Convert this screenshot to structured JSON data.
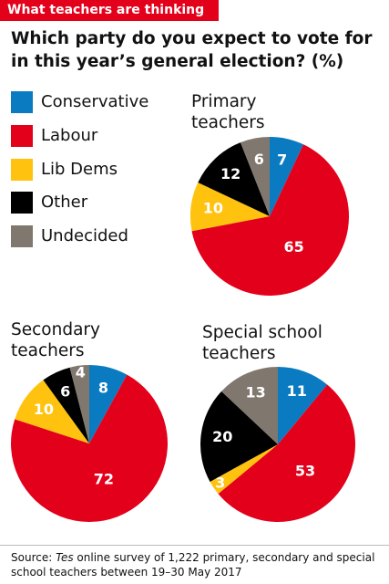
{
  "header": "What teachers are thinking",
  "title": "Which party do you expect to vote for in this year’s general election? (%)",
  "legend": [
    {
      "name": "Conservative",
      "color": "#0b7bc1"
    },
    {
      "name": "Labour",
      "color": "#e3001b"
    },
    {
      "name": "Lib Dems",
      "color": "#ffc20e"
    },
    {
      "name": "Other",
      "color": "#000000"
    },
    {
      "name": "Undecided",
      "color": "#80776f"
    }
  ],
  "chart_data": [
    {
      "type": "pie",
      "title": "Primary teachers",
      "values": [
        7,
        65,
        10,
        12,
        6
      ]
    },
    {
      "type": "pie",
      "title": "Secondary teachers",
      "values": [
        8,
        72,
        10,
        6,
        4
      ]
    },
    {
      "type": "pie",
      "title": "Special school teachers",
      "values": [
        11,
        53,
        3,
        20,
        13
      ]
    }
  ],
  "source": {
    "label": "Source:",
    "publication": "Tes",
    "text": "online survey of 1,222 primary, secondary and special school teachers between 19–30 May 2017"
  }
}
